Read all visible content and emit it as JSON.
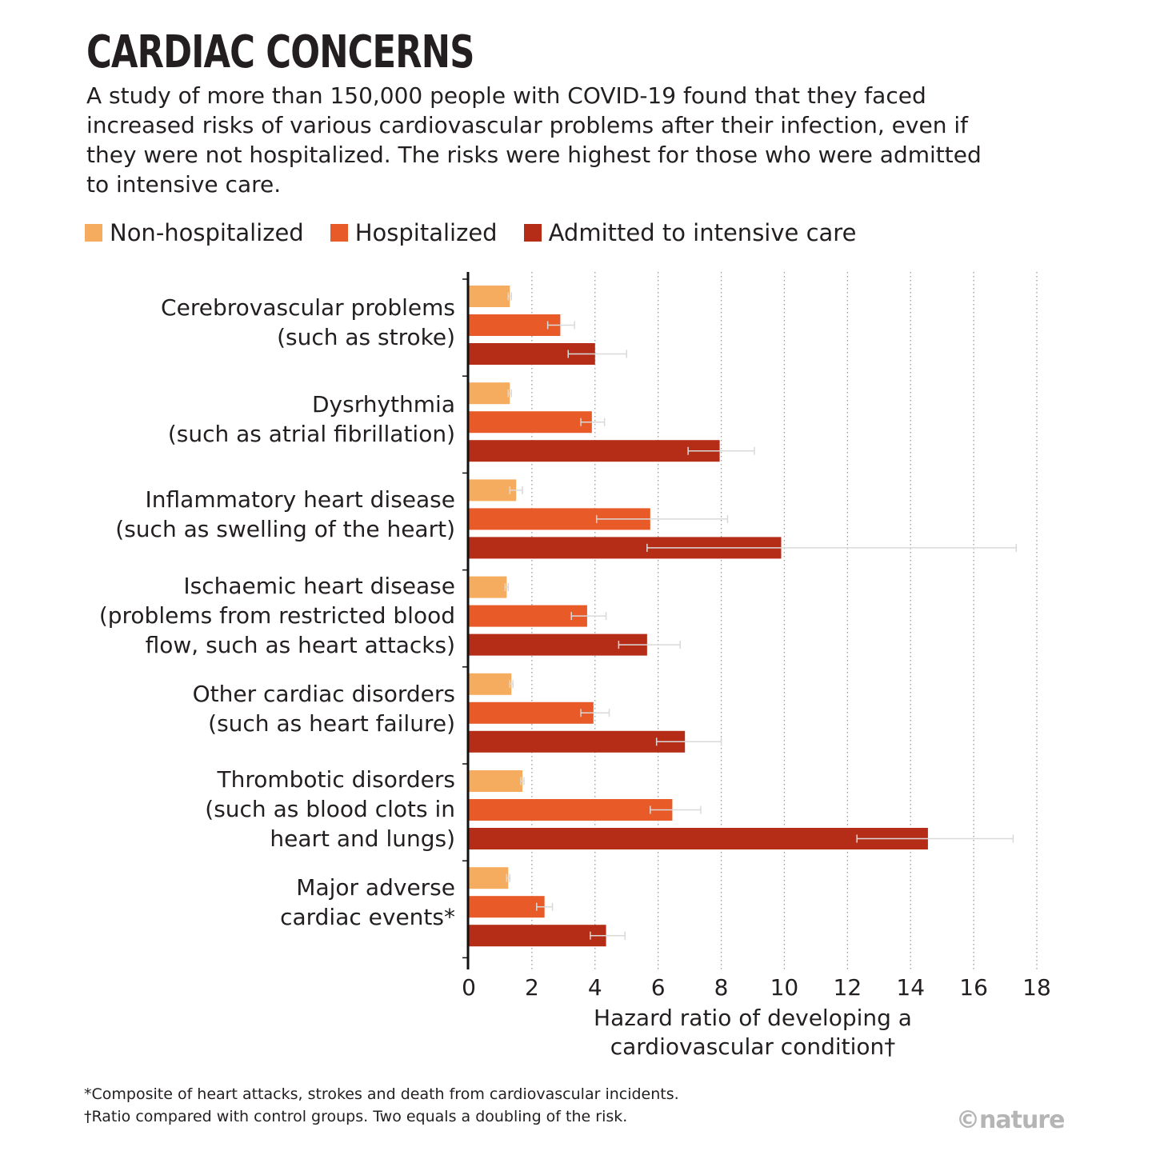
{
  "title": "CARDIAC CONCERNS",
  "subtitle": "A study of more than 150,000 people with COVID-19 found that they faced increased risks of various cardiovascular problems after their infection, even if they were not hospitalized. The risks were highest for those who were admitted to intensive care.",
  "legend": [
    {
      "label": "Non-hospitalized",
      "color": "#f5ac5f"
    },
    {
      "label": "Hospitalized",
      "color": "#e85a27"
    },
    {
      "label": "Admitted to intensive care",
      "color": "#b52c17"
    }
  ],
  "chart_data": {
    "type": "bar",
    "orientation": "horizontal",
    "categories": [
      [
        "Cerebrovascular problems",
        "(such as stroke)"
      ],
      [
        "Dysrhythmia",
        "(such as atrial fibrillation)"
      ],
      [
        "Inflammatory heart disease",
        "(such as swelling of the heart)"
      ],
      [
        "Ischaemic heart disease",
        "(problems from restricted blood",
        "flow, such as heart attacks)"
      ],
      [
        "Other cardiac disorders",
        "(such as heart failure)"
      ],
      [
        "Thrombotic disorders",
        "(such as blood clots in",
        "heart and lungs)"
      ],
      [
        "Major adverse",
        "cardiac events*"
      ]
    ],
    "series": [
      {
        "name": "Non-hospitalized",
        "values": [
          1.3,
          1.3,
          1.5,
          1.2,
          1.35,
          1.7,
          1.25
        ],
        "errors": [
          [
            1.25,
            1.35
          ],
          [
            1.25,
            1.35
          ],
          [
            1.3,
            1.7
          ],
          [
            1.15,
            1.25
          ],
          [
            1.3,
            1.4
          ],
          [
            1.65,
            1.75
          ],
          [
            1.2,
            1.3
          ]
        ]
      },
      {
        "name": "Hospitalized",
        "values": [
          2.9,
          3.9,
          5.75,
          3.75,
          3.95,
          6.45,
          2.4
        ],
        "errors": [
          [
            2.5,
            3.35
          ],
          [
            3.55,
            4.3
          ],
          [
            4.05,
            8.2
          ],
          [
            3.25,
            4.35
          ],
          [
            3.55,
            4.45
          ],
          [
            5.75,
            7.35
          ],
          [
            2.15,
            2.65
          ]
        ]
      },
      {
        "name": "Admitted to intensive care",
        "values": [
          4.0,
          7.95,
          9.9,
          5.65,
          6.85,
          14.55,
          4.35
        ],
        "errors": [
          [
            3.15,
            5.0
          ],
          [
            6.95,
            9.05
          ],
          [
            5.65,
            17.35
          ],
          [
            4.75,
            6.7
          ],
          [
            5.95,
            8.0
          ],
          [
            12.3,
            17.25
          ],
          [
            3.85,
            4.95
          ]
        ]
      }
    ],
    "xlim": [
      0,
      18
    ],
    "xticks": [
      "0",
      "2",
      "4",
      "6",
      "8",
      "10",
      "12",
      "14",
      "16",
      "18"
    ],
    "xlabel": [
      "Hazard ratio of developing a",
      "cardiovascular condition†"
    ],
    "grid": "vertical dotted"
  },
  "footnotes": [
    "*Composite of heart attacks, strokes and death from cardiovascular incidents.",
    "†Ratio compared with control groups. Two equals a doubling of the risk."
  ],
  "credit": "©nature"
}
